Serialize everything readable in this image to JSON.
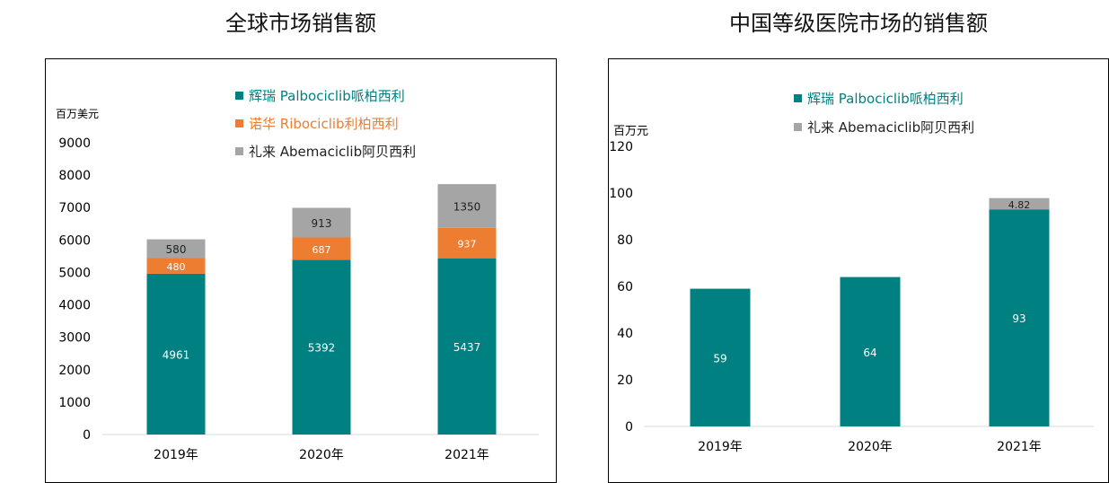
{
  "chart_data": [
    {
      "type": "bar",
      "stacked": true,
      "title": "全球市场销售额",
      "ylabel": "百万美元",
      "categories": [
        "2019年",
        "2020年",
        "2021年"
      ],
      "ylim": [
        0,
        9000
      ],
      "yticks": [
        0,
        1000,
        2000,
        3000,
        4000,
        5000,
        6000,
        7000,
        8000,
        9000
      ],
      "legend_position": "top-center",
      "series": [
        {
          "name": "辉瑞 Palbociclib哌柏西利",
          "values": [
            4961,
            5392,
            5437
          ],
          "color": "#008080",
          "label_color": "#ffffff",
          "text_color": "#008080"
        },
        {
          "name": "诺华 Ribociclib利柏西利",
          "values": [
            480,
            687,
            937
          ],
          "color": "#ED7D31",
          "label_color": "#ffffff",
          "text_color": "#ED7D31"
        },
        {
          "name": "礼来 Abemaciclib阿贝西利",
          "values": [
            580,
            913,
            1350
          ],
          "color": "#A5A5A5",
          "label_color": "#222222",
          "text_color": "#222222"
        }
      ]
    },
    {
      "type": "bar",
      "stacked": true,
      "title": "中国等级医院市场的销售额",
      "ylabel": "百万元",
      "categories": [
        "2019年",
        "2020年",
        "2021年"
      ],
      "ylim": [
        0,
        120
      ],
      "yticks": [
        0,
        20,
        40,
        60,
        80,
        100,
        120
      ],
      "legend_position": "top-center",
      "series": [
        {
          "name": "辉瑞 Palbociclib哌柏西利",
          "values": [
            59,
            64,
            93
          ],
          "color": "#008080",
          "label_color": "#ffffff",
          "text_color": "#008080"
        },
        {
          "name": "礼来 Abemaciclib阿贝西利",
          "values": [
            null,
            null,
            4.82
          ],
          "color": "#A5A5A5",
          "label_color": "#222222",
          "text_color": "#222222"
        }
      ]
    }
  ]
}
